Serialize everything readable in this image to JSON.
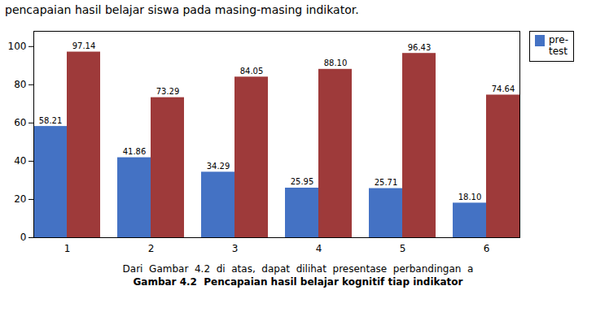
{
  "chart_data": {
    "type": "bar",
    "title": "pencapaian hasil belajar siswa pada masing-masing indikator.",
    "annotations": [
      "Dari  Gambar  4.2  di  atas,  dapat  dilihat  presentase  perbandingan  a",
      "Gambar 4.2  Pencapaian hasil belajar kognitif tiap indikator"
    ],
    "categories": [
      "1",
      "2",
      "3",
      "4",
      "5",
      "6"
    ],
    "series": [
      {
        "name": "pre-\ntest",
        "color": "#4472C4",
        "values": [
          58.21,
          41.86,
          34.29,
          25.95,
          25.71,
          18.1
        ],
        "value_labels": [
          "58.21",
          "41.86",
          "34.29",
          "25.95",
          "25.71",
          "18.10"
        ]
      },
      {
        "color": "#9E3A3A",
        "values": [
          97.14,
          73.29,
          84.05,
          88.1,
          96.43,
          74.64
        ],
        "value_labels": [
          "97.14",
          "73.29",
          "84.05",
          "88.10",
          "96.43",
          "74.64"
        ]
      }
    ],
    "ylim": [
      0,
      108
    ],
    "yticks": [
      0,
      20,
      40,
      60,
      80,
      100
    ],
    "grid": false,
    "legend": "upper right",
    "data_labels": true
  }
}
